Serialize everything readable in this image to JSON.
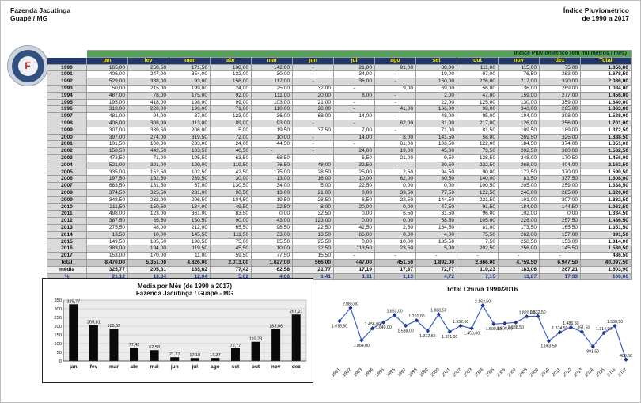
{
  "page": {
    "header_left_line1": "Fazenda Jacutinga",
    "header_left_line2": "Guapé / MG",
    "header_right_line1": "Índice Pluviométrico",
    "header_right_line2": "de 1990 a 2017",
    "logo_letter": "F"
  },
  "colors": {
    "table_title_green": "#58a05a",
    "header_navy": "#20386b",
    "header_yellow": "#ffe400",
    "row_grey": "#d9d9d9",
    "line_blue": "#3a5fcd",
    "marker_navy": "#1f3a8c",
    "bar_black": "#0a0a0a"
  },
  "table": {
    "title": "Índice Pluviométrico (em milimetros / mês)",
    "months": [
      "jan",
      "fev",
      "mar",
      "abr",
      "mai",
      "jun",
      "jul",
      "ago",
      "set",
      "out",
      "nov",
      "dez"
    ],
    "total_header": "Total",
    "rows": [
      {
        "year": "1990",
        "values": [
          "165,00",
          "268,50",
          "171,50",
          "108,00",
          "142,00",
          "-",
          "21,00",
          "91,00",
          "88,00",
          "111,00",
          "115,00",
          "75,00"
        ],
        "total": "1.356,00"
      },
      {
        "year": "1991",
        "values": [
          "406,00",
          "247,00",
          "354,00",
          "132,00",
          "30,00",
          "-",
          "34,00",
          "-",
          "19,00",
          "97,00",
          "76,50",
          "283,00"
        ],
        "total": "1.678,50"
      },
      {
        "year": "1992",
        "values": [
          "529,00",
          "338,00",
          "93,00",
          "156,00",
          "117,00",
          "-",
          "36,00",
          "-",
          "150,00",
          "226,00",
          "217,00",
          "320,00"
        ],
        "total": "2.086,00"
      },
      {
        "year": "1993",
        "values": [
          "50,00",
          "215,00",
          "199,00",
          "24,00",
          "25,00",
          "32,00",
          "-",
          "9,00",
          "69,00",
          "56,00",
          "136,00",
          "269,00"
        ],
        "total": "1.084,00"
      },
      {
        "year": "1994",
        "values": [
          "487,00",
          "78,00",
          "175,00",
          "92,00",
          "111,00",
          "20,00",
          "8,00",
          "-",
          "2,00",
          "47,00",
          "159,00",
          "277,00"
        ],
        "total": "1.456,00"
      },
      {
        "year": "1995",
        "values": [
          "195,00",
          "418,00",
          "198,00",
          "99,00",
          "103,00",
          "21,00",
          "-",
          "-",
          "22,00",
          "125,00",
          "130,00",
          "359,00"
        ],
        "total": "1.640,00"
      },
      {
        "year": "1996",
        "values": [
          "318,00",
          "220,00",
          "196,00",
          "71,00",
          "110,00",
          "28,00",
          "-",
          "41,00",
          "166,00",
          "98,00",
          "346,00",
          "265,00"
        ],
        "total": "1.863,00"
      },
      {
        "year": "1997",
        "values": [
          "481,00",
          "94,00",
          "87,00",
          "123,00",
          "36,00",
          "68,00",
          "14,00",
          "-",
          "48,00",
          "95,00",
          "194,00",
          "298,00"
        ],
        "total": "1.538,00"
      },
      {
        "year": "1998",
        "values": [
          "406,00",
          "308,00",
          "113,00",
          "89,00",
          "93,00",
          "-",
          "-",
          "62,00",
          "31,00",
          "217,00",
          "126,00",
          "256,00"
        ],
        "total": "1.701,00"
      },
      {
        "year": "1999",
        "values": [
          "307,00",
          "339,50",
          "206,00",
          "5,00",
          "19,50",
          "37,50",
          "7,00",
          "-",
          "71,00",
          "81,50",
          "109,50",
          "189,00"
        ],
        "total": "1.372,50"
      },
      {
        "year": "2000",
        "values": [
          "397,00",
          "274,00",
          "319,50",
          "72,00",
          "10,00",
          "-",
          "14,00",
          "8,00",
          "141,50",
          "58,00",
          "269,50",
          "325,00"
        ],
        "total": "1.888,50"
      },
      {
        "year": "2001",
        "values": [
          "101,50",
          "100,00",
          "233,00",
          "24,00",
          "44,50",
          "-",
          "-",
          "61,00",
          "106,50",
          "122,00",
          "184,50",
          "374,00"
        ],
        "total": "1.351,00"
      },
      {
        "year": "2002",
        "values": [
          "158,50",
          "442,50",
          "103,50",
          "40,50",
          "-",
          "-",
          "24,00",
          "19,00",
          "45,00",
          "73,50",
          "202,50",
          "360,00"
        ],
        "total": "1.532,50"
      },
      {
        "year": "2003",
        "values": [
          "473,50",
          "71,00",
          "195,50",
          "63,50",
          "68,50",
          "-",
          "6,50",
          "21,00",
          "9,50",
          "128,50",
          "248,00",
          "170,50"
        ],
        "total": "1.456,00"
      },
      {
        "year": "2004",
        "values": [
          "521,00",
          "321,00",
          "120,00",
          "119,50",
          "76,50",
          "48,00",
          "32,50",
          "-",
          "30,50",
          "222,50",
          "268,00",
          "404,00"
        ],
        "total": "2.163,50"
      },
      {
        "year": "2005",
        "values": [
          "335,00",
          "152,50",
          "102,50",
          "42,50",
          "175,00",
          "28,50",
          "25,00",
          "2,50",
          "94,50",
          "90,00",
          "172,50",
          "370,00"
        ],
        "total": "1.590,50"
      },
      {
        "year": "2006",
        "values": [
          "197,50",
          "192,50",
          "239,50",
          "30,00",
          "13,00",
          "16,00",
          "10,00",
          "62,00",
          "80,50",
          "140,00",
          "81,50",
          "337,50"
        ],
        "total": "1.608,00"
      },
      {
        "year": "2007",
        "values": [
          "683,50",
          "131,50",
          "67,00",
          "130,50",
          "34,00",
          "5,00",
          "22,50",
          "0,00",
          "0,00",
          "100,50",
          "205,00",
          "259,00"
        ],
        "total": "1.638,50"
      },
      {
        "year": "2008",
        "values": [
          "374,50",
          "325,50",
          "231,00",
          "90,50",
          "13,00",
          "21,00",
          "0,00",
          "33,50",
          "77,50",
          "122,50",
          "246,00",
          "285,00"
        ],
        "total": "1.820,00"
      },
      {
        "year": "2009",
        "values": [
          "348,50",
          "232,00",
          "296,50",
          "104,50",
          "19,50",
          "28,50",
          "6,50",
          "22,50",
          "144,50",
          "221,50",
          "101,00",
          "307,00"
        ],
        "total": "1.832,50"
      },
      {
        "year": "2010",
        "values": [
          "211,50",
          "150,50",
          "134,00",
          "49,50",
          "22,50",
          "8,00",
          "20,00",
          "0,00",
          "47,50",
          "91,50",
          "184,00",
          "144,50"
        ],
        "total": "1.063,50"
      },
      {
        "year": "2011",
        "values": [
          "498,00",
          "123,00",
          "361,00",
          "83,50",
          "0,00",
          "32,50",
          "0,00",
          "6,50",
          "31,50",
          "96,00",
          "102,00",
          "0,00"
        ],
        "total": "1.334,50"
      },
      {
        "year": "2012",
        "values": [
          "387,50",
          "65,50",
          "130,50",
          "90,00",
          "43,00",
          "123,00",
          "0,00",
          "0,00",
          "58,50",
          "105,00",
          "226,00",
          "257,50"
        ],
        "total": "1.486,50"
      },
      {
        "year": "2013",
        "values": [
          "275,50",
          "48,00",
          "212,00",
          "65,50",
          "98,50",
          "22,50",
          "42,50",
          "2,50",
          "164,50",
          "81,00",
          "173,50",
          "165,50"
        ],
        "total": "1.351,50"
      },
      {
        "year": "2014",
        "values": [
          "13,50",
          "10,00",
          "145,50",
          "111,50",
          "33,00",
          "13,50",
          "66,00",
          "0,00",
          "4,00",
          "75,50",
          "262,00",
          "157,00"
        ],
        "total": "891,50"
      },
      {
        "year": "2015",
        "values": [
          "149,50",
          "185,50",
          "198,50",
          "75,00",
          "65,50",
          "25,50",
          "0,00",
          "10,00",
          "185,50",
          "7,50",
          "258,50",
          "153,00"
        ],
        "total": "1.314,00"
      },
      {
        "year": "2016",
        "values": [
          "383,00",
          "194,00",
          "119,50",
          "45,50",
          "10,00",
          "32,50",
          "113,50",
          "23,50",
          "5,00",
          "202,50",
          "256,00",
          "145,50"
        ],
        "total": "1.530,50"
      },
      {
        "year": "2017",
        "values": [
          "153,00",
          "170,00",
          "11,00",
          "59,50",
          "77,50",
          "15,50",
          "-",
          "-",
          "-",
          "-",
          "-",
          "-"
        ],
        "total": "486,50"
      }
    ],
    "footer": [
      {
        "label": "total",
        "values": [
          "8.470,00",
          "5.351,00",
          "4.826,00",
          "2.013,00",
          "1.627,00",
          "566,00",
          "447,00",
          "451,50",
          "1.892,00",
          "2.866,00",
          "4.759,50",
          "6.947,50"
        ],
        "total": "40.097,50"
      },
      {
        "label": "média",
        "values": [
          "325,77",
          "205,81",
          "185,62",
          "77,42",
          "62,58",
          "21,77",
          "17,19",
          "17,37",
          "72,77",
          "110,23",
          "183,06",
          "267,21"
        ],
        "total": "1.603,90"
      },
      {
        "label": "%",
        "values": [
          "21,12",
          "13,34",
          "12,04",
          "5,02",
          "4,06",
          "1,41",
          "1,11",
          "1,13",
          "4,72",
          "7,15",
          "11,87",
          "17,33"
        ],
        "total": "100,00"
      }
    ]
  },
  "chart_data": [
    {
      "type": "bar",
      "title": "Media por Mês (de 1990 a 2017)",
      "subtitle": "Fazenda Jacutinga / Guapé - MG",
      "categories": [
        "jan",
        "fev",
        "mar",
        "abr",
        "mai",
        "jun",
        "jul",
        "ago",
        "set",
        "out",
        "nov",
        "dez"
      ],
      "values": [
        325.77,
        205.81,
        185.62,
        77.42,
        62.58,
        21.77,
        17.19,
        17.37,
        72.77,
        110.23,
        183.06,
        267.21
      ],
      "value_labels": [
        "325,77",
        "205,81",
        "185,62",
        "77,42",
        "62,58",
        "21,77",
        "17,19",
        "17,37",
        "72,77",
        "110,23",
        "183,06",
        "267,21"
      ],
      "xlabel": "",
      "ylabel": "",
      "ylim": [
        0,
        350
      ],
      "ytick_step": 50,
      "grid": true,
      "legend": false
    },
    {
      "type": "line",
      "title": "Total Chuva 1990/2016",
      "x": [
        "1991",
        "1992",
        "1993",
        "1994",
        "1995",
        "1996",
        "1997",
        "1998",
        "1999",
        "2000",
        "2001",
        "2002",
        "2003",
        "2004",
        "2005",
        "2006",
        "2007",
        "2008",
        "2009",
        "2010",
        "2011",
        "2012",
        "2013",
        "2014",
        "2015",
        "2016",
        "2017"
      ],
      "values": [
        1678.5,
        2086,
        1084,
        1456,
        1640,
        1863,
        1538,
        1701,
        1372.5,
        1888.5,
        1351,
        1532.5,
        1456,
        2163.5,
        1590.5,
        1608,
        1638.5,
        1820,
        1832.5,
        1063.5,
        1334.5,
        1486.5,
        1351.5,
        891.5,
        1314,
        1530.5,
        486.5
      ],
      "value_labels": [
        "1.678,50",
        "2.086,00",
        "1.084,00",
        "1.456,00",
        "1.640,00",
        "1.863,00",
        "1.538,00",
        "1.701,00",
        "1.372,50",
        "1.888,50",
        "1.351,00",
        "1.532,50",
        "1.456,00",
        "2.163,50",
        "1.590,50",
        "1.608,00",
        "1.638,50",
        "1.820,00",
        "1.832,50",
        "1.063,50",
        "1.334,50",
        "1.486,50",
        "1.351,50",
        "891,50",
        "1.314,00",
        "1.530,50",
        "486,50"
      ],
      "marker": "diamond",
      "grid": false,
      "legend": false
    }
  ]
}
